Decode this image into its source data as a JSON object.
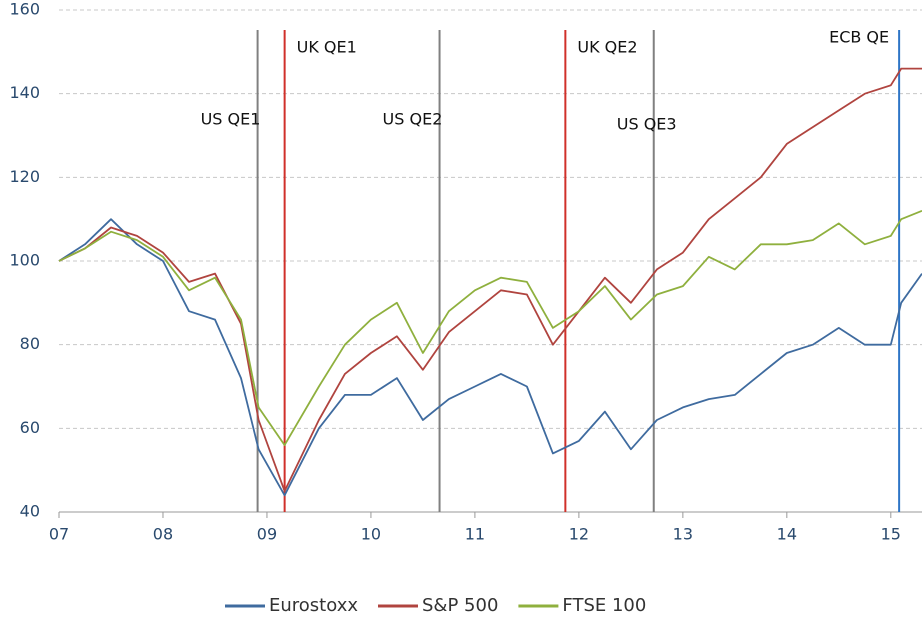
{
  "chart_data": {
    "type": "line",
    "x": [
      2007.0,
      2007.25,
      2007.5,
      2007.75,
      2008.0,
      2008.25,
      2008.5,
      2008.75,
      2008.92,
      2009.17,
      2009.5,
      2009.75,
      2010.0,
      2010.25,
      2010.5,
      2010.75,
      2011.0,
      2011.25,
      2011.5,
      2011.75,
      2012.0,
      2012.25,
      2012.5,
      2012.75,
      2013.0,
      2013.25,
      2013.5,
      2013.75,
      2014.0,
      2014.25,
      2014.5,
      2014.75,
      2015.0,
      2015.1,
      2015.3
    ],
    "series": [
      {
        "name": "Eurostoxx",
        "color": "#3f6b9f",
        "values": [
          100,
          104,
          110,
          104,
          100,
          88,
          86,
          72,
          55,
          44,
          60,
          68,
          68,
          72,
          62,
          67,
          70,
          73,
          70,
          54,
          57,
          64,
          55,
          62,
          65,
          67,
          68,
          73,
          78,
          80,
          84,
          80,
          80,
          90,
          97
        ]
      },
      {
        "name": "S&P 500",
        "color": "#b0443f",
        "values": [
          100,
          103,
          108,
          106,
          102,
          95,
          97,
          85,
          62,
          45,
          62,
          73,
          78,
          82,
          74,
          83,
          88,
          93,
          92,
          80,
          88,
          96,
          90,
          98,
          102,
          110,
          115,
          120,
          128,
          132,
          136,
          140,
          142,
          146,
          146
        ]
      },
      {
        "name": "FTSE 100",
        "color": "#8fb03e",
        "values": [
          100,
          103,
          107,
          105,
          101,
          93,
          96,
          86,
          65,
          56,
          70,
          80,
          86,
          90,
          78,
          88,
          93,
          96,
          95,
          84,
          88,
          94,
          86,
          92,
          94,
          101,
          98,
          104,
          104,
          105,
          109,
          104,
          106,
          110,
          112
        ]
      }
    ],
    "events": [
      {
        "x": 2008.91,
        "label": "US QE1",
        "color": "#808080"
      },
      {
        "x": 2009.17,
        "label": "UK QE1",
        "color": "#d0302a"
      },
      {
        "x": 2010.66,
        "label": "US QE2",
        "color": "#808080"
      },
      {
        "x": 2011.87,
        "label": "UK QE2",
        "color": "#d0302a"
      },
      {
        "x": 2012.72,
        "label": "US QE3",
        "color": "#808080"
      },
      {
        "x": 2015.08,
        "label": "ECB QE",
        "color": "#2e75c6"
      }
    ],
    "xlim": [
      2007,
      2015.3
    ],
    "xticks": [
      {
        "value": 2007,
        "label": "07"
      },
      {
        "value": 2008,
        "label": "08"
      },
      {
        "value": 2009,
        "label": "09"
      },
      {
        "value": 2010,
        "label": "10"
      },
      {
        "value": 2011,
        "label": "11"
      },
      {
        "value": 2012,
        "label": "12"
      },
      {
        "value": 2013,
        "label": "13"
      },
      {
        "value": 2014,
        "label": "14"
      },
      {
        "value": 2015,
        "label": "15"
      }
    ],
    "ylim": [
      40,
      160
    ],
    "yticks": [
      40,
      60,
      80,
      100,
      120,
      140,
      160
    ],
    "grid": true,
    "legend": "bottom"
  }
}
